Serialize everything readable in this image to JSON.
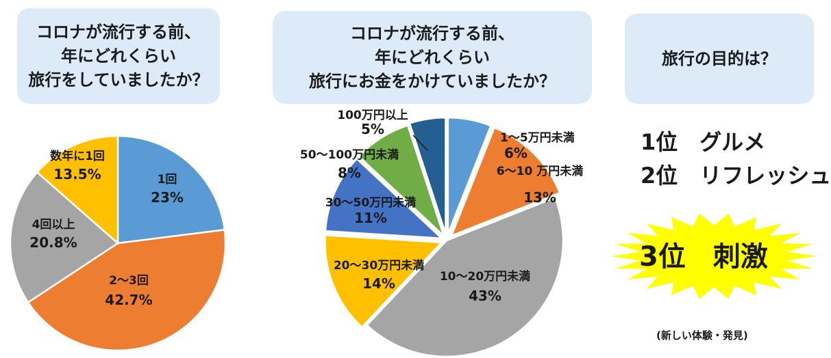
{
  "q1": {
    "lines": [
      "コロナが流行する前、",
      "年にどれくらい",
      "旅行をしていましたか？"
    ]
  },
  "q2": {
    "lines": [
      "コロナが流行する前、",
      "年にどれくらい",
      "旅行にお金をかけていましたか？"
    ]
  },
  "q3": {
    "lines": [
      "旅行の目的は？"
    ]
  },
  "chart_data": [
    {
      "type": "pie",
      "title": "",
      "slices": [
        {
          "label": "1回",
          "value": 23,
          "value_label": "23%",
          "color": "#5b9bd5"
        },
        {
          "label": "2～3回",
          "value": 42.7,
          "value_label": "42.7%",
          "color": "#ed7d31"
        },
        {
          "label": "4回以上",
          "value": 20.8,
          "value_label": "20.8%",
          "color": "#a5a5a5"
        },
        {
          "label": "数年に1回",
          "value": 13.5,
          "value_label": "13.5%",
          "color": "#ffc000"
        }
      ]
    },
    {
      "type": "pie",
      "title": "",
      "slices": [
        {
          "label": "1～5万円未満",
          "value": 6,
          "value_label": "6%",
          "color": "#5b9bd5"
        },
        {
          "label": "6～10 万円未満",
          "value": 13,
          "value_label": "13%",
          "color": "#ed7d31"
        },
        {
          "label": "10～20万円未満",
          "value": 43,
          "value_label": "43%",
          "color": "#a5a5a5"
        },
        {
          "label": "20～30万円未満",
          "value": 14,
          "value_label": "14%",
          "color": "#ffc000"
        },
        {
          "label": "30～50万円未満",
          "value": 11,
          "value_label": "11%",
          "color": "#4472c4"
        },
        {
          "label": "50～100万円未満",
          "value": 8,
          "value_label": "8%",
          "color": "#70ad47"
        },
        {
          "label": "100万円以上",
          "value": 5,
          "value_label": "5%",
          "color": "#255e91"
        }
      ]
    }
  ],
  "ranking": {
    "first": "1位　グルメ",
    "second": "2位　リフレッシュ",
    "third": "3位　刺激",
    "third_note": "(新しい体験・発見)",
    "burst_color": "#ffff00"
  }
}
